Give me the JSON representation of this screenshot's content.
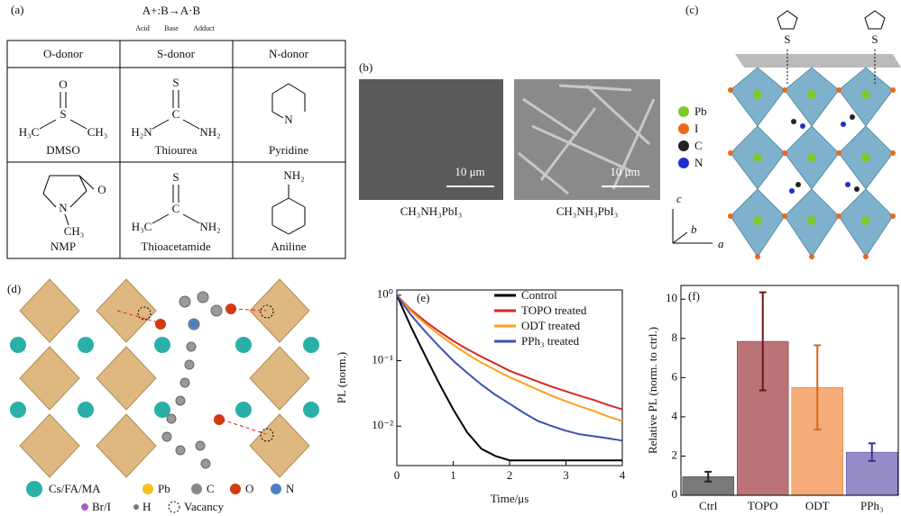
{
  "panel_a": {
    "label": "(a)",
    "reaction": "A+:B→A·B",
    "reaction_labels": [
      "Acid",
      "Base",
      "Adduct"
    ],
    "headers": [
      "O-donor",
      "S-donor",
      "N-donor"
    ],
    "molecules": [
      {
        "name": "DMSO",
        "atoms": [
          "O",
          "S",
          "H₃C",
          "CH₃"
        ]
      },
      {
        "name": "Thiourea",
        "atoms": [
          "S",
          "C",
          "H₂N",
          "NH₂"
        ]
      },
      {
        "name": "Pyridine",
        "atoms": [
          "N"
        ]
      },
      {
        "name": "NMP",
        "atoms": [
          "O",
          "N",
          "CH₃"
        ]
      },
      {
        "name": "Thioacetamide",
        "atoms": [
          "S",
          "C",
          "H₃C",
          "NH₂"
        ]
      },
      {
        "name": "Aniline",
        "atoms": [
          "NH₂"
        ]
      }
    ]
  },
  "panel_b": {
    "label": "(b)",
    "scale_bars": [
      "10 μm",
      "10 μm"
    ],
    "captions": [
      "CH₃NH₃PbI₃",
      "CH₃NH₃PbI₃"
    ]
  },
  "panel_c": {
    "label": "(c)",
    "legend": [
      "Pb",
      "I",
      "C",
      "N"
    ],
    "ring_atoms": [
      "S",
      "S"
    ],
    "axes": [
      "c",
      "b",
      "a"
    ]
  },
  "panel_d": {
    "label": "(d)",
    "legend": [
      "Cs/FA/MA",
      "Pb",
      "C",
      "O",
      "N",
      "Br/I",
      "H",
      "Vacancy"
    ]
  },
  "chart_data": [
    {
      "type": "line",
      "label": "(e)",
      "x_label": "Time/μs",
      "y_label": "PL (norm.)",
      "log_y": true,
      "x": [
        0,
        0.25,
        0.5,
        0.75,
        1,
        1.25,
        1.5,
        1.75,
        2,
        2.25,
        2.5,
        2.75,
        3,
        3.25,
        3.5,
        3.75,
        4
      ],
      "xlim": [
        0,
        4
      ],
      "xticks": [
        0,
        1,
        2,
        3,
        4
      ],
      "ylim": [
        0.0025,
        1.2
      ],
      "yticks": [
        {
          "value": 0.01,
          "label": "10⁻²"
        },
        {
          "value": 0.1,
          "label": "10⁻¹"
        },
        {
          "value": 1,
          "label": "10⁰"
        }
      ],
      "series": [
        {
          "name": "Control",
          "color": "#000000",
          "values": [
            1,
            0.33,
            0.12,
            0.045,
            0.018,
            0.008,
            0.0045,
            0.0035,
            0.003,
            0.003,
            0.003,
            0.003,
            0.003,
            0.003,
            0.003,
            0.003,
            0.003
          ]
        },
        {
          "name": "TOPO treated",
          "color": "#d62728",
          "values": [
            1,
            0.6,
            0.4,
            0.28,
            0.2,
            0.15,
            0.115,
            0.09,
            0.07,
            0.058,
            0.048,
            0.04,
            0.034,
            0.029,
            0.025,
            0.021,
            0.018
          ]
        },
        {
          "name": "ODT treated",
          "color": "#ff9f1c",
          "values": [
            1,
            0.57,
            0.37,
            0.25,
            0.175,
            0.125,
            0.093,
            0.072,
            0.056,
            0.045,
            0.036,
            0.029,
            0.024,
            0.02,
            0.017,
            0.014,
            0.012
          ]
        },
        {
          "name": "PPh₃ treated",
          "color": "#3e4fb0",
          "values": [
            1,
            0.5,
            0.28,
            0.165,
            0.1,
            0.065,
            0.043,
            0.03,
            0.022,
            0.016,
            0.012,
            0.01,
            0.0085,
            0.0075,
            0.007,
            0.0065,
            0.006
          ]
        }
      ]
    },
    {
      "type": "bar",
      "label": "(f)",
      "y_label": "Relative PL (norm. to ctrl.)",
      "categories": [
        "Ctrl",
        "TOPO",
        "ODT",
        "PPh₃"
      ],
      "values": [
        0.95,
        7.85,
        5.5,
        2.2
      ],
      "errors": [
        0.25,
        2.5,
        2.15,
        0.45
      ],
      "colors": [
        "#6b6b6b",
        "#b5646a",
        "#f4a46a",
        "#8a7fc2"
      ],
      "error_colors": [
        "#222222",
        "#6e1418",
        "#d8651f",
        "#3b3296"
      ],
      "ylim": [
        0,
        10.7
      ],
      "yticks": [
        0,
        2,
        4,
        6,
        8,
        10
      ]
    }
  ]
}
